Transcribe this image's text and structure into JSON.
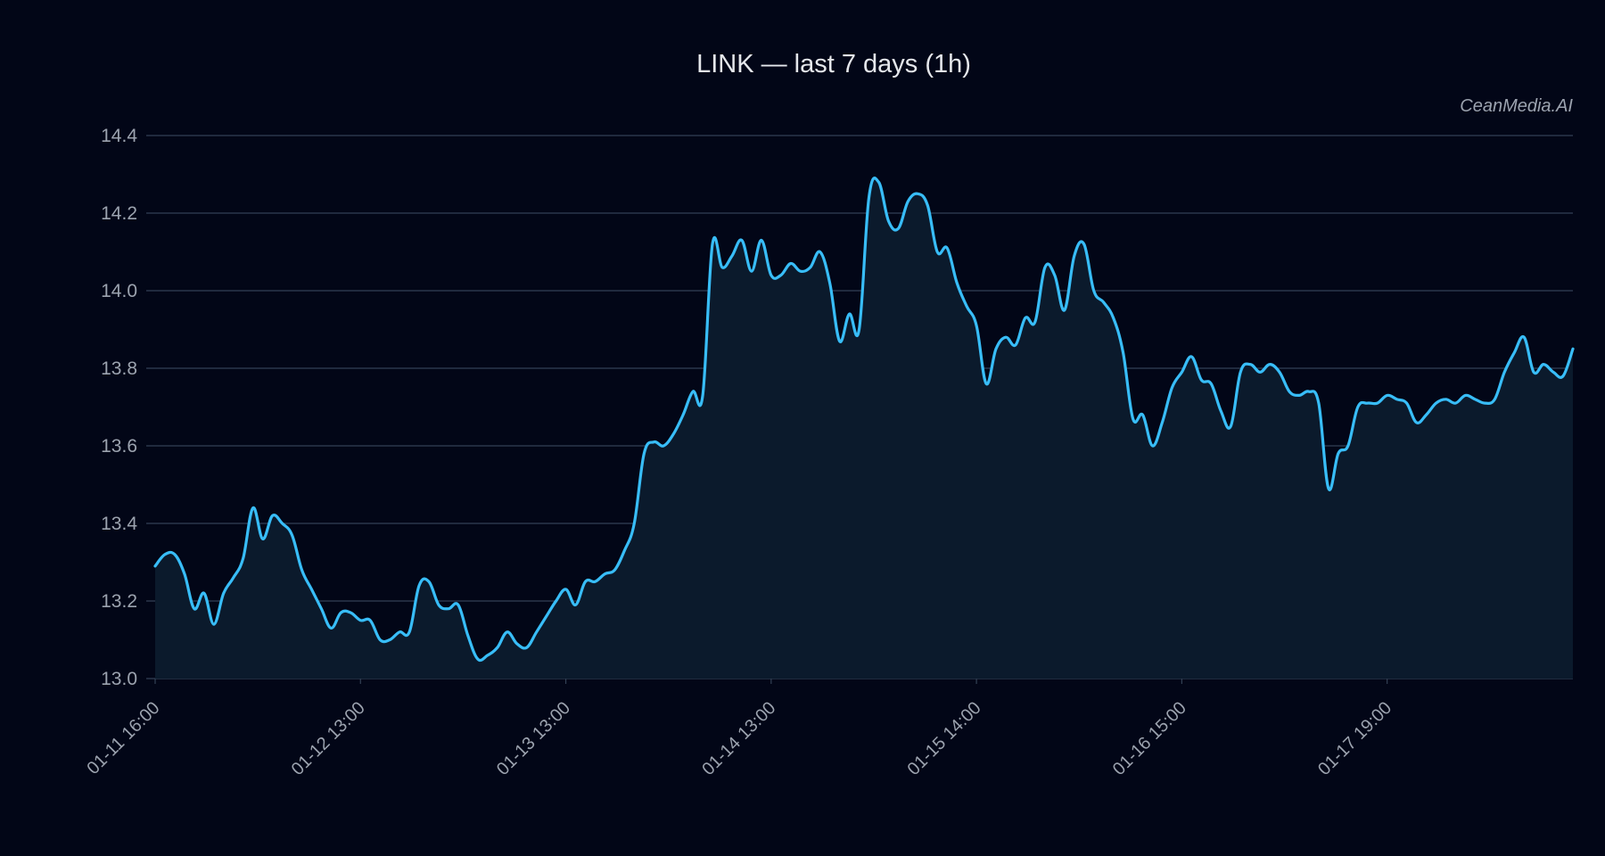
{
  "header": {
    "title": "LINK — last 7 days (1h)",
    "watermark": "CeanMedia.AI"
  },
  "colors": {
    "background": "#020617",
    "line": "#38bdf8",
    "fill": "#0b1a2c",
    "grid": "#334155",
    "text": "#9ca3af"
  },
  "chart_data": {
    "type": "area",
    "title": "LINK — last 7 days (1h)",
    "xlabel": "",
    "ylabel": "",
    "ylim": [
      13.0,
      14.4
    ],
    "grid": true,
    "legend": null,
    "yticks": [
      "13.0",
      "13.2",
      "13.4",
      "13.6",
      "13.8",
      "14.0",
      "14.2",
      "14.4"
    ],
    "xticks": [
      "01-11 16:00",
      "01-12 13:00",
      "01-13 13:00",
      "01-14 13:00",
      "01-15 14:00",
      "01-16 15:00",
      "01-17 19:00"
    ],
    "xtick_index": [
      0,
      21,
      42,
      63,
      84,
      105,
      126
    ],
    "n_points": 146,
    "points": [
      [
        0,
        13.29
      ],
      [
        1,
        13.32
      ],
      [
        2,
        13.32
      ],
      [
        3,
        13.27
      ],
      [
        4,
        13.18
      ],
      [
        5,
        13.22
      ],
      [
        6,
        13.14
      ],
      [
        7,
        13.22
      ],
      [
        8,
        13.26
      ],
      [
        9,
        13.31
      ],
      [
        10,
        13.44
      ],
      [
        11,
        13.36
      ],
      [
        12,
        13.42
      ],
      [
        13,
        13.4
      ],
      [
        14,
        13.37
      ],
      [
        15,
        13.28
      ],
      [
        16,
        13.23
      ],
      [
        17,
        13.18
      ],
      [
        18,
        13.13
      ],
      [
        19,
        13.17
      ],
      [
        20,
        13.17
      ],
      [
        21,
        13.15
      ],
      [
        22,
        13.15
      ],
      [
        23,
        13.1
      ],
      [
        24,
        13.1
      ],
      [
        25,
        13.12
      ],
      [
        26,
        13.12
      ],
      [
        27,
        13.24
      ],
      [
        28,
        13.25
      ],
      [
        29,
        13.19
      ],
      [
        30,
        13.18
      ],
      [
        31,
        13.19
      ],
      [
        32,
        13.11
      ],
      [
        33,
        13.05
      ],
      [
        34,
        13.06
      ],
      [
        35,
        13.08
      ],
      [
        36,
        13.12
      ],
      [
        37,
        13.09
      ],
      [
        38,
        13.08
      ],
      [
        39,
        13.12
      ],
      [
        40,
        13.16
      ],
      [
        41,
        13.2
      ],
      [
        42,
        13.23
      ],
      [
        43,
        13.19
      ],
      [
        44,
        13.25
      ],
      [
        45,
        13.25
      ],
      [
        46,
        13.27
      ],
      [
        47,
        13.28
      ],
      [
        48,
        13.33
      ],
      [
        49,
        13.4
      ],
      [
        50,
        13.58
      ],
      [
        51,
        13.61
      ],
      [
        52,
        13.6
      ],
      [
        53,
        13.63
      ],
      [
        54,
        13.68
      ],
      [
        55,
        13.74
      ],
      [
        56,
        13.73
      ],
      [
        57,
        14.12
      ],
      [
        58,
        14.06
      ],
      [
        59,
        14.09
      ],
      [
        60,
        14.13
      ],
      [
        61,
        14.05
      ],
      [
        62,
        14.13
      ],
      [
        63,
        14.04
      ],
      [
        64,
        14.04
      ],
      [
        65,
        14.07
      ],
      [
        66,
        14.05
      ],
      [
        67,
        14.06
      ],
      [
        68,
        14.1
      ],
      [
        69,
        14.02
      ],
      [
        70,
        13.87
      ],
      [
        71,
        13.94
      ],
      [
        72,
        13.9
      ],
      [
        73,
        14.24
      ],
      [
        74,
        14.28
      ],
      [
        75,
        14.18
      ],
      [
        76,
        14.16
      ],
      [
        77,
        14.23
      ],
      [
        78,
        14.25
      ],
      [
        79,
        14.22
      ],
      [
        80,
        14.1
      ],
      [
        81,
        14.11
      ],
      [
        82,
        14.02
      ],
      [
        83,
        13.96
      ],
      [
        84,
        13.91
      ],
      [
        85,
        13.76
      ],
      [
        86,
        13.85
      ],
      [
        87,
        13.88
      ],
      [
        88,
        13.86
      ],
      [
        89,
        13.93
      ],
      [
        90,
        13.92
      ],
      [
        91,
        14.06
      ],
      [
        92,
        14.04
      ],
      [
        93,
        13.95
      ],
      [
        94,
        14.09
      ],
      [
        95,
        14.12
      ],
      [
        96,
        14.0
      ],
      [
        97,
        13.97
      ],
      [
        98,
        13.93
      ],
      [
        99,
        13.84
      ],
      [
        100,
        13.67
      ],
      [
        101,
        13.68
      ],
      [
        102,
        13.6
      ],
      [
        103,
        13.66
      ],
      [
        104,
        13.75
      ],
      [
        105,
        13.79
      ],
      [
        106,
        13.83
      ],
      [
        107,
        13.77
      ],
      [
        108,
        13.76
      ],
      [
        109,
        13.69
      ],
      [
        110,
        13.65
      ],
      [
        111,
        13.79
      ],
      [
        112,
        13.81
      ],
      [
        113,
        13.79
      ],
      [
        114,
        13.81
      ],
      [
        115,
        13.79
      ],
      [
        116,
        13.74
      ],
      [
        117,
        13.73
      ],
      [
        118,
        13.74
      ],
      [
        119,
        13.71
      ],
      [
        120,
        13.49
      ],
      [
        121,
        13.58
      ],
      [
        122,
        13.6
      ],
      [
        123,
        13.7
      ],
      [
        124,
        13.71
      ],
      [
        125,
        13.71
      ],
      [
        126,
        13.73
      ],
      [
        127,
        13.72
      ],
      [
        128,
        13.71
      ],
      [
        129,
        13.66
      ],
      [
        130,
        13.68
      ],
      [
        131,
        13.71
      ],
      [
        132,
        13.72
      ],
      [
        133,
        13.71
      ],
      [
        134,
        13.73
      ],
      [
        135,
        13.72
      ],
      [
        136,
        13.71
      ],
      [
        137,
        13.72
      ],
      [
        138,
        13.79
      ],
      [
        139,
        13.84
      ],
      [
        140,
        13.88
      ],
      [
        141,
        13.79
      ],
      [
        142,
        13.81
      ],
      [
        143,
        13.79
      ],
      [
        144,
        13.78
      ],
      [
        145,
        13.85
      ]
    ]
  }
}
